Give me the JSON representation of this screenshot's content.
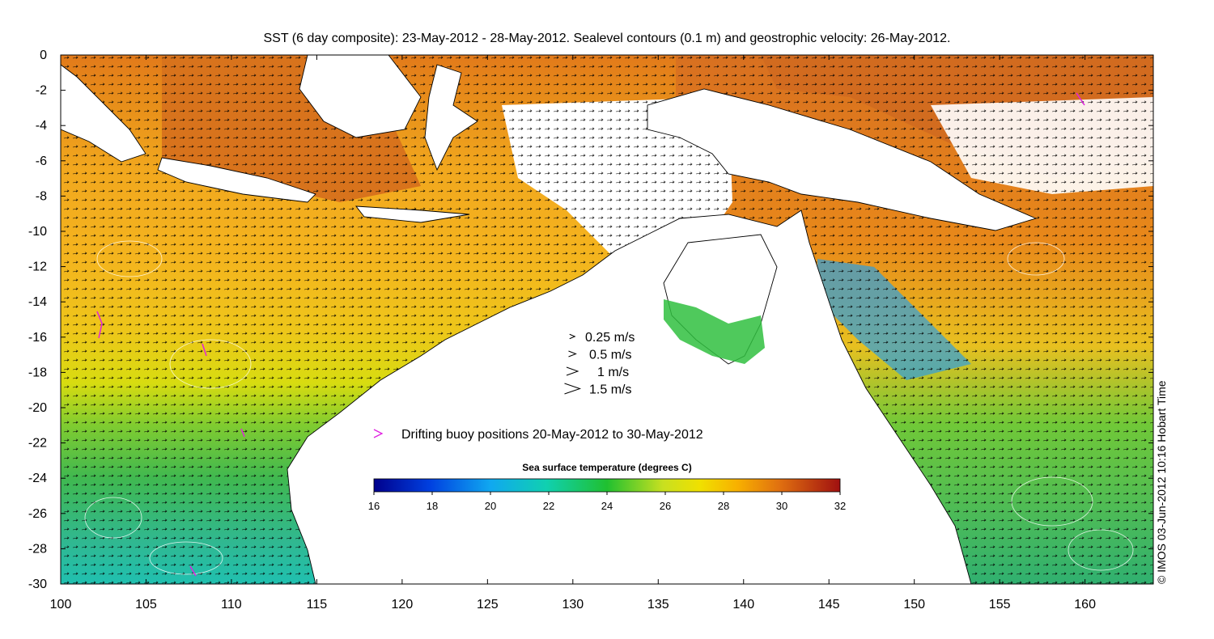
{
  "title": "SST (6 day composite): 23-May-2012 - 28-May-2012. Sealevel contours (0.1 m) and geostrophic velocity: 26-May-2012.",
  "credit": "© IMOS 03-Jun-2012 10:16 Hobart Time",
  "map": {
    "lon_range": [
      100,
      164
    ],
    "lat_range": [
      -30,
      0
    ],
    "x_ticks": [
      "100",
      "105",
      "110",
      "115",
      "120",
      "125",
      "130",
      "135",
      "140",
      "145",
      "150",
      "155",
      "160"
    ],
    "y_ticks": [
      "0",
      "-2",
      "-4",
      "-6",
      "-8",
      "-10",
      "-12",
      "-14",
      "-16",
      "-18",
      "-20",
      "-22",
      "-24",
      "-26",
      "-28",
      "-30"
    ]
  },
  "velocity_legend": [
    {
      "label": "0.25 m/s",
      "speed": 0.25
    },
    {
      "label": "0.5 m/s",
      "speed": 0.5
    },
    {
      "label": "1 m/s",
      "speed": 1
    },
    {
      "label": "1.5 m/s",
      "speed": 1.5
    }
  ],
  "buoy_legend": {
    "label": "Drifting buoy positions 20-May-2012 to 30-May-2012",
    "color": "#e020e0"
  },
  "colorbar": {
    "title": "Sea surface temperature (degrees C)",
    "ticks": [
      "16",
      "18",
      "20",
      "22",
      "24",
      "26",
      "28",
      "30",
      "32"
    ],
    "range": [
      16,
      32
    ]
  },
  "colors": {
    "land": "#ffffff",
    "coast": "#000000",
    "contour": "#ffffff",
    "arrow": "#000000"
  }
}
